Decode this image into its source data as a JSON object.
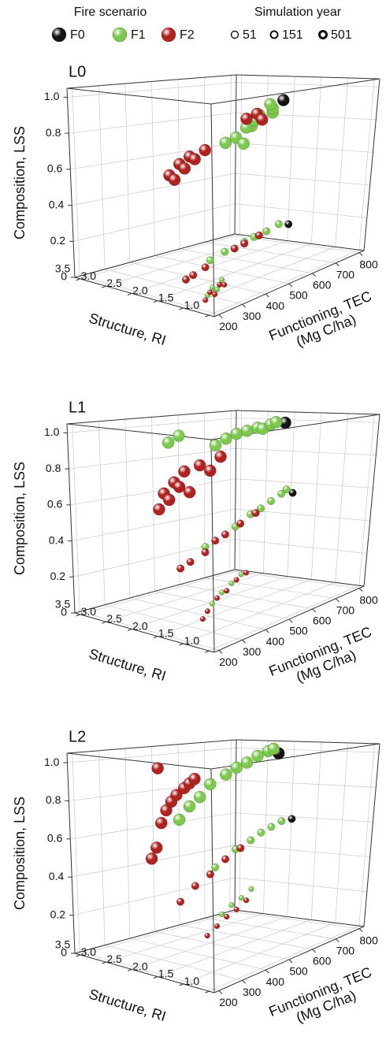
{
  "legend": {
    "color_title": "Fire scenario",
    "size_title": "Simulation year",
    "entries": [
      {
        "name": "F0",
        "color": "#141414"
      },
      {
        "name": "F1",
        "color": "#7cc94e"
      },
      {
        "name": "F2",
        "color": "#b0211f"
      }
    ],
    "sizes": [
      51,
      151,
      501
    ]
  },
  "chart_data": [
    {
      "type": "scatter3d",
      "title": "L0",
      "xlabel": [
        "Functioning, TEC",
        "(Mg C/ha)"
      ],
      "ylabel": "Structure, RI",
      "zlabel": "Composition, LSS",
      "xlim": [
        180,
        820
      ],
      "xticks": [
        200,
        300,
        400,
        500,
        600,
        700,
        800
      ],
      "ylim": [
        0.9,
        3.6
      ],
      "yticks": [
        {
          "value": 1,
          "label": "1.0"
        },
        1.5,
        {
          "value": 2,
          "label": "2.0"
        },
        2.5,
        {
          "value": 3,
          "label": "3.0"
        },
        3.5
      ],
      "zlim": [
        0,
        1.05
      ],
      "zticks": [
        0,
        0.2,
        0.4,
        0.6,
        0.8,
        {
          "value": 1,
          "label": "1.0"
        }
      ],
      "grid": true,
      "series": [
        {
          "x": [
            740,
            740
          ],
          "y": [
            2.1,
            2.3
          ],
          "z": [
            0.16,
            0.92
          ],
          "sizes": [
            151,
            501
          ]
        },
        {
          "x": [
            240,
            260,
            280,
            300,
            420,
            480,
            560,
            600,
            650,
            700,
            520,
            560,
            580,
            600,
            620,
            640,
            650,
            680,
            700,
            710
          ],
          "y": [
            1.3,
            1.3,
            1.3,
            1.3,
            2.1,
            2.1,
            2.1,
            2.1,
            2.1,
            2.1,
            2.3,
            2.3,
            2.25,
            2.2,
            2.4,
            2.35,
            2.3,
            2.2,
            2.3,
            2.4
          ],
          "z": [
            0.05,
            0.08,
            0.06,
            0.1,
            0.1,
            0.12,
            0.14,
            0.15,
            0.16,
            0.18,
            0.72,
            0.74,
            0.7,
            0.8,
            0.78,
            0.82,
            0.85,
            0.86,
            0.88,
            0.9
          ],
          "sizes": [
            51,
            51,
            51,
            51,
            151,
            151,
            151,
            151,
            151,
            151,
            501,
            501,
            501,
            501,
            501,
            501,
            501,
            501,
            501,
            501
          ]
        },
        {
          "x": [
            230,
            250,
            270,
            290,
            310,
            320,
            350,
            400,
            520,
            560,
            620,
            300,
            320,
            340,
            360,
            380,
            400,
            440,
            600,
            640,
            660
          ],
          "y": [
            1.3,
            1.3,
            1.3,
            1.3,
            1.3,
            2.1,
            2.1,
            2.1,
            2.1,
            2.1,
            2.1,
            2.3,
            2.3,
            2.3,
            2.3,
            2.3,
            2.3,
            2.3,
            2.3,
            2.3,
            2.3
          ],
          "z": [
            0.03,
            0.06,
            0.04,
            0.08,
            0.07,
            0.04,
            0.05,
            0.07,
            0.12,
            0.13,
            0.15,
            0.6,
            0.57,
            0.65,
            0.62,
            0.68,
            0.66,
            0.7,
            0.84,
            0.86,
            0.82
          ],
          "sizes": [
            51,
            51,
            51,
            51,
            51,
            151,
            151,
            151,
            151,
            151,
            151,
            501,
            501,
            501,
            501,
            501,
            501,
            501,
            501,
            501,
            501
          ]
        }
      ]
    },
    {
      "type": "scatter3d",
      "title": "L1",
      "xlabel": [
        "Functioning, TEC",
        "(Mg C/ha)"
      ],
      "ylabel": "Structure, RI",
      "zlabel": "Composition, LSS",
      "xlim": [
        180,
        820
      ],
      "xticks": [
        200,
        300,
        400,
        500,
        600,
        700,
        800
      ],
      "ylim": [
        0.9,
        3.6
      ],
      "yticks": [
        {
          "value": 1,
          "label": "1.0"
        },
        1.5,
        {
          "value": 2,
          "label": "2.0"
        },
        2.5,
        {
          "value": 3,
          "label": "3.0"
        },
        3.5
      ],
      "zlim": [
        0,
        1.05
      ],
      "zticks": [
        0,
        0.2,
        0.4,
        0.6,
        0.8,
        {
          "value": 1,
          "label": "1.0"
        }
      ],
      "grid": true,
      "series": [
        {
          "x": [
            745,
            745
          ],
          "y": [
            2.1,
            2.3
          ],
          "z": [
            0.57,
            1.0
          ],
          "sizes": [
            151,
            501
          ]
        },
        {
          "x": [
            260,
            300,
            340,
            380,
            400,
            520,
            580,
            620,
            660,
            700,
            720,
            300,
            340,
            480,
            520,
            560,
            600,
            640,
            660,
            690,
            710
          ],
          "y": [
            1.3,
            1.3,
            1.3,
            1.3,
            2.1,
            2.1,
            2.1,
            2.1,
            2.1,
            2.1,
            2.1,
            2.3,
            2.3,
            2.3,
            2.3,
            2.3,
            2.3,
            2.3,
            2.3,
            2.3,
            2.3
          ],
          "z": [
            0.18,
            0.22,
            0.25,
            0.28,
            0.38,
            0.45,
            0.5,
            0.52,
            0.55,
            0.58,
            0.6,
            0.97,
            1.0,
            0.92,
            0.95,
            0.97,
            0.98,
            0.99,
            0.98,
            1.0,
            1.01
          ],
          "sizes": [
            51,
            51,
            51,
            51,
            151,
            151,
            151,
            151,
            151,
            151,
            151,
            501,
            501,
            501,
            501,
            501,
            501,
            501,
            501,
            501,
            501
          ]
        },
        {
          "x": [
            220,
            240,
            280,
            320,
            360,
            400,
            300,
            340,
            400,
            440,
            480,
            540,
            600,
            260,
            280,
            300,
            320,
            340,
            360,
            380,
            420,
            460,
            500
          ],
          "y": [
            1.3,
            1.3,
            1.3,
            1.3,
            1.3,
            1.3,
            2.1,
            2.1,
            2.1,
            2.1,
            2.1,
            2.1,
            2.1,
            2.3,
            2.3,
            2.3,
            2.3,
            2.3,
            2.3,
            2.3,
            2.3,
            2.3,
            2.3
          ],
          "z": [
            0.12,
            0.15,
            0.2,
            0.22,
            0.26,
            0.28,
            0.3,
            0.32,
            0.35,
            0.4,
            0.42,
            0.46,
            0.5,
            0.62,
            0.7,
            0.66,
            0.75,
            0.72,
            0.8,
            0.68,
            0.82,
            0.78,
            0.85
          ],
          "sizes": [
            51,
            51,
            51,
            51,
            51,
            51,
            151,
            151,
            151,
            151,
            151,
            151,
            151,
            501,
            501,
            501,
            501,
            501,
            501,
            501,
            501,
            501,
            501
          ]
        }
      ]
    },
    {
      "type": "scatter3d",
      "title": "L2",
      "xlabel": [
        "Functioning, TEC",
        "(Mg C/ha)"
      ],
      "ylabel": "Structure, RI",
      "zlabel": "Composition, LSS",
      "xlim": [
        180,
        820
      ],
      "xticks": [
        200,
        300,
        400,
        500,
        600,
        700,
        800
      ],
      "ylim": [
        0.9,
        3.6
      ],
      "yticks": [
        {
          "value": 1,
          "label": "1.0"
        },
        1.5,
        {
          "value": 2,
          "label": "2.0"
        },
        2.5,
        {
          "value": 3,
          "label": "3.0"
        },
        3.5
      ],
      "zlim": [
        0,
        1.05
      ],
      "zticks": [
        0,
        0.2,
        0.4,
        0.6,
        0.8,
        {
          "value": 1,
          "label": "1.0"
        }
      ],
      "grid": true,
      "series": [
        {
          "x": [
            740,
            720
          ],
          "y": [
            2.1,
            2.3
          ],
          "z": [
            0.62,
            1.0
          ],
          "sizes": [
            151,
            501
          ]
        },
        {
          "x": [
            300,
            340,
            380,
            420,
            440,
            520,
            580,
            620,
            660,
            700,
            340,
            380,
            420,
            460,
            520,
            560,
            600,
            640,
            680,
            700
          ],
          "y": [
            1.3,
            1.3,
            1.3,
            1.3,
            2.1,
            2.1,
            2.1,
            2.1,
            2.1,
            2.1,
            2.3,
            2.3,
            2.3,
            2.3,
            2.3,
            2.3,
            2.3,
            2.3,
            2.3,
            2.3
          ],
          "z": [
            0.3,
            0.33,
            0.35,
            0.38,
            0.45,
            0.52,
            0.55,
            0.58,
            0.6,
            0.62,
            0.72,
            0.78,
            0.82,
            0.88,
            0.92,
            0.95,
            0.97,
            1.0,
            1.02,
            1.03
          ],
          "sizes": [
            51,
            51,
            51,
            51,
            151,
            151,
            151,
            151,
            151,
            151,
            501,
            501,
            501,
            501,
            501,
            501,
            501,
            501,
            501,
            501
          ]
        },
        {
          "x": [
            240,
            280,
            320,
            360,
            400,
            300,
            360,
            420,
            480,
            540,
            230,
            250,
            260,
            270,
            290,
            310,
            330,
            360,
            380,
            400
          ],
          "y": [
            1.3,
            1.3,
            1.3,
            1.3,
            1.3,
            2.1,
            2.1,
            2.1,
            2.1,
            2.1,
            2.3,
            2.3,
            2.3,
            2.3,
            2.3,
            2.3,
            2.3,
            2.3,
            2.3,
            2.3
          ],
          "z": [
            0.22,
            0.25,
            0.28,
            0.3,
            0.33,
            0.32,
            0.38,
            0.42,
            0.48,
            0.52,
            0.55,
            0.6,
            1.0,
            0.72,
            0.78,
            0.82,
            0.85,
            0.88,
            0.9,
            0.92
          ],
          "sizes": [
            51,
            51,
            51,
            51,
            51,
            151,
            151,
            151,
            151,
            151,
            501,
            501,
            501,
            501,
            501,
            501,
            501,
            501,
            501,
            501
          ]
        }
      ]
    }
  ]
}
